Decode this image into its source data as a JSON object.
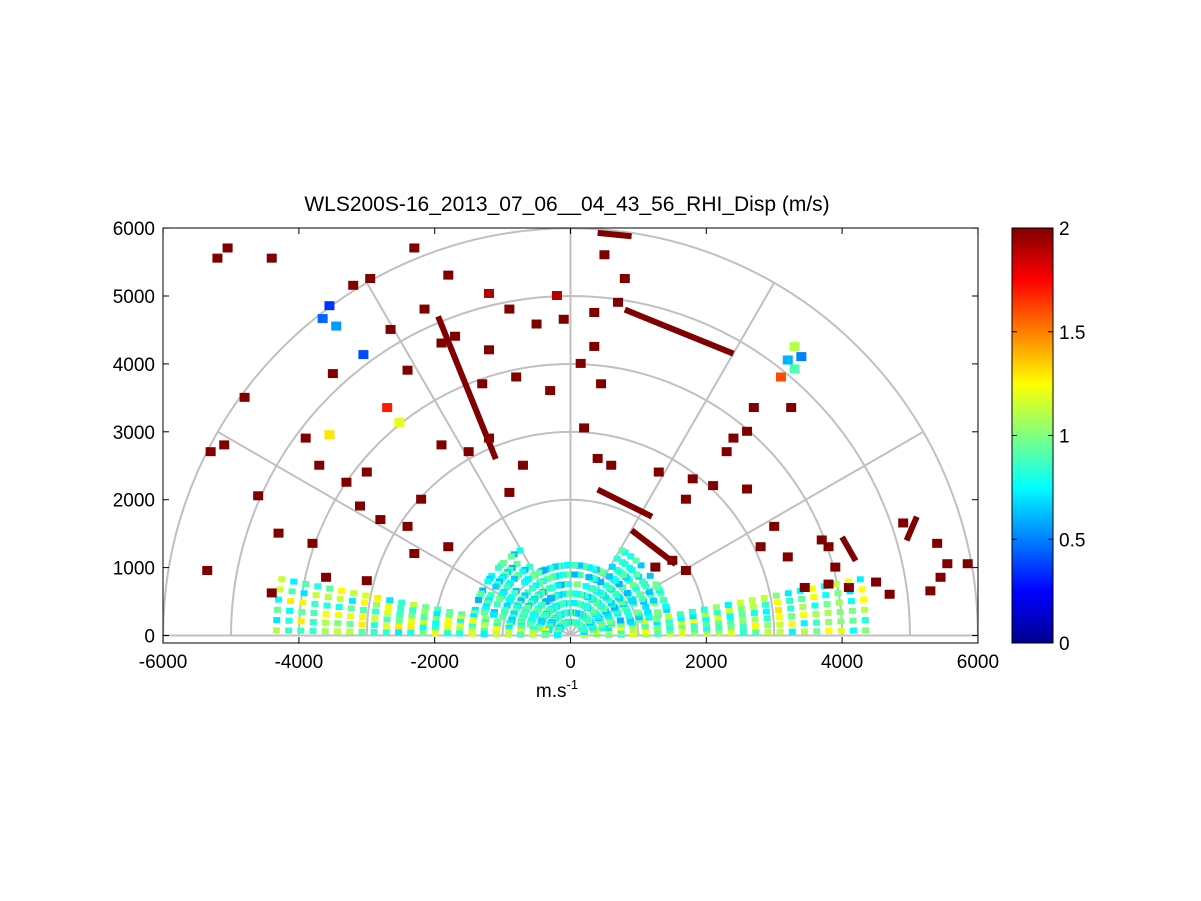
{
  "chart_data": {
    "type": "heatmap",
    "projection": "polar-rhi",
    "title": "WLS200S-16_2013_07_06__04_43_56_RHI_Disp (m/s)",
    "xlabel_base": "m.s",
    "xlabel_superscript": "-1",
    "ylabel": "",
    "xlim": [
      -6000,
      6000
    ],
    "ylim": [
      -100,
      6000
    ],
    "xticks": [
      -6000,
      -4000,
      -2000,
      0,
      2000,
      4000,
      6000
    ],
    "xtick_labels": [
      "-6000",
      "-4000",
      "-2000",
      "0",
      "2000",
      "4000",
      "6000"
    ],
    "yticks": [
      0,
      1000,
      2000,
      3000,
      4000,
      5000,
      6000
    ],
    "ytick_labels": [
      "0",
      "1000",
      "2000",
      "3000",
      "4000",
      "5000",
      "6000"
    ],
    "polar_grid_radii": [
      1000,
      2000,
      3000,
      4000,
      5000,
      6000
    ],
    "polar_grid_angles_deg": [
      0,
      30,
      60,
      90,
      120,
      150,
      180
    ],
    "grid": true,
    "colormap": "jet",
    "clim": [
      0,
      2
    ],
    "colorbar_ticks": [
      0,
      0.5,
      1,
      1.5,
      2
    ],
    "colorbar_tick_labels": [
      "0",
      "0.5",
      "1",
      "1.5",
      "2"
    ],
    "colorbar_position": "right",
    "cells": [
      {
        "x": -3650,
        "y": 4660,
        "v": 0.45
      },
      {
        "x": -3450,
        "y": 4550,
        "v": 0.55
      },
      {
        "x": -3550,
        "y": 4850,
        "v": 0.35
      },
      {
        "x": -3050,
        "y": 4130,
        "v": 0.4
      },
      {
        "x": -2700,
        "y": 3350,
        "v": 1.7
      },
      {
        "x": -2520,
        "y": 3130,
        "v": 1.2
      },
      {
        "x": -3550,
        "y": 2950,
        "v": 1.3
      },
      {
        "x": -1200,
        "y": 5030,
        "v": 1.9
      },
      {
        "x": -200,
        "y": 5000,
        "v": 1.9
      },
      {
        "x": 3300,
        "y": 4250,
        "v": 1.1
      },
      {
        "x": 3400,
        "y": 4100,
        "v": 0.5
      },
      {
        "x": 3200,
        "y": 4050,
        "v": 0.6
      },
      {
        "x": 3300,
        "y": 3920,
        "v": 0.9
      },
      {
        "x": 3100,
        "y": 3800,
        "v": 1.6
      },
      {
        "x": -5200,
        "y": 5550,
        "v": 2
      },
      {
        "x": -5050,
        "y": 5700,
        "v": 2
      },
      {
        "x": -4400,
        "y": 5550,
        "v": 2
      },
      {
        "x": -2950,
        "y": 5250,
        "v": 2
      },
      {
        "x": -2300,
        "y": 5700,
        "v": 2
      },
      {
        "x": -1800,
        "y": 5300,
        "v": 2
      },
      {
        "x": -3200,
        "y": 5150,
        "v": 2
      },
      {
        "x": -2650,
        "y": 4500,
        "v": 2
      },
      {
        "x": -2150,
        "y": 4800,
        "v": 2
      },
      {
        "x": -1700,
        "y": 4400,
        "v": 2
      },
      {
        "x": -1200,
        "y": 4200,
        "v": 2
      },
      {
        "x": -900,
        "y": 4800,
        "v": 2
      },
      {
        "x": -500,
        "y": 4580,
        "v": 2
      },
      {
        "x": -100,
        "y": 4650,
        "v": 2
      },
      {
        "x": 350,
        "y": 4750,
        "v": 2
      },
      {
        "x": 700,
        "y": 4900,
        "v": 2
      },
      {
        "x": 800,
        "y": 5250,
        "v": 2
      },
      {
        "x": 500,
        "y": 5600,
        "v": 2
      },
      {
        "x": 350,
        "y": 4250,
        "v": 2
      },
      {
        "x": 150,
        "y": 4000,
        "v": 2
      },
      {
        "x": 450,
        "y": 3700,
        "v": 2
      },
      {
        "x": -300,
        "y": 3600,
        "v": 2
      },
      {
        "x": -800,
        "y": 3800,
        "v": 2
      },
      {
        "x": -1300,
        "y": 3700,
        "v": 2
      },
      {
        "x": -1900,
        "y": 4300,
        "v": 2
      },
      {
        "x": -2400,
        "y": 3900,
        "v": 2
      },
      {
        "x": -3500,
        "y": 3850,
        "v": 2
      },
      {
        "x": -4800,
        "y": 3500,
        "v": 2
      },
      {
        "x": -5300,
        "y": 2700,
        "v": 2
      },
      {
        "x": -5100,
        "y": 2800,
        "v": 2
      },
      {
        "x": -4600,
        "y": 2050,
        "v": 2
      },
      {
        "x": -3900,
        "y": 2900,
        "v": 2
      },
      {
        "x": -3700,
        "y": 2500,
        "v": 2
      },
      {
        "x": -3300,
        "y": 2250,
        "v": 2
      },
      {
        "x": -3100,
        "y": 1900,
        "v": 2
      },
      {
        "x": -2800,
        "y": 1700,
        "v": 2
      },
      {
        "x": -3000,
        "y": 2400,
        "v": 2
      },
      {
        "x": -2400,
        "y": 1600,
        "v": 2
      },
      {
        "x": -2200,
        "y": 2000,
        "v": 2
      },
      {
        "x": -1900,
        "y": 2800,
        "v": 2
      },
      {
        "x": -1500,
        "y": 2700,
        "v": 2
      },
      {
        "x": -1200,
        "y": 2900,
        "v": 2
      },
      {
        "x": -700,
        "y": 2500,
        "v": 2
      },
      {
        "x": -900,
        "y": 2100,
        "v": 2
      },
      {
        "x": -4300,
        "y": 1500,
        "v": 2
      },
      {
        "x": -3800,
        "y": 1350,
        "v": 2
      },
      {
        "x": -2300,
        "y": 1200,
        "v": 2
      },
      {
        "x": -1800,
        "y": 1300,
        "v": 2
      },
      {
        "x": -5350,
        "y": 950,
        "v": 2
      },
      {
        "x": -4400,
        "y": 620,
        "v": 2
      },
      {
        "x": -3600,
        "y": 850,
        "v": 2
      },
      {
        "x": -3000,
        "y": 800,
        "v": 2
      },
      {
        "x": 200,
        "y": 3050,
        "v": 2
      },
      {
        "x": 400,
        "y": 2600,
        "v": 2
      },
      {
        "x": 600,
        "y": 2500,
        "v": 2
      },
      {
        "x": 1300,
        "y": 2400,
        "v": 2
      },
      {
        "x": 1800,
        "y": 2300,
        "v": 2
      },
      {
        "x": 2100,
        "y": 2200,
        "v": 2
      },
      {
        "x": 1700,
        "y": 2000,
        "v": 2
      },
      {
        "x": 2400,
        "y": 2900,
        "v": 2
      },
      {
        "x": 2600,
        "y": 3000,
        "v": 2
      },
      {
        "x": 2700,
        "y": 3350,
        "v": 2
      },
      {
        "x": 3250,
        "y": 3350,
        "v": 2
      },
      {
        "x": 2300,
        "y": 2700,
        "v": 2
      },
      {
        "x": 2600,
        "y": 2150,
        "v": 2
      },
      {
        "x": 3000,
        "y": 1600,
        "v": 2
      },
      {
        "x": 3200,
        "y": 1150,
        "v": 2
      },
      {
        "x": 3800,
        "y": 1300,
        "v": 2
      },
      {
        "x": 3900,
        "y": 1000,
        "v": 2
      },
      {
        "x": 3450,
        "y": 700,
        "v": 2
      },
      {
        "x": 3800,
        "y": 750,
        "v": 2
      },
      {
        "x": 4100,
        "y": 700,
        "v": 2
      },
      {
        "x": 4500,
        "y": 780,
        "v": 2
      },
      {
        "x": 4700,
        "y": 600,
        "v": 2
      },
      {
        "x": 4900,
        "y": 1650,
        "v": 2
      },
      {
        "x": 5400,
        "y": 1350,
        "v": 2
      },
      {
        "x": 5550,
        "y": 1050,
        "v": 2
      },
      {
        "x": 5450,
        "y": 850,
        "v": 2
      },
      {
        "x": 5300,
        "y": 650,
        "v": 2
      },
      {
        "x": 5850,
        "y": 1050,
        "v": 2
      },
      {
        "x": 3700,
        "y": 1400,
        "v": 2
      },
      {
        "x": 2800,
        "y": 1300,
        "v": 2
      },
      {
        "x": 1500,
        "y": 1100,
        "v": 2
      },
      {
        "x": 1250,
        "y": 1000,
        "v": 2
      },
      {
        "x": 1700,
        "y": 950,
        "v": 2
      }
    ],
    "streaks": [
      {
        "x0": 800,
        "y0": 4800,
        "x1": 2400,
        "y1": 4150,
        "v": 2
      },
      {
        "x0": 400,
        "y0": 5930,
        "x1": 900,
        "y1": 5880,
        "v": 2
      },
      {
        "x0": -1950,
        "y0": 4700,
        "x1": -1100,
        "y1": 2600,
        "v": 2
      },
      {
        "x0": 400,
        "y0": 2150,
        "x1": 1200,
        "y1": 1750,
        "v": 2
      },
      {
        "x0": 900,
        "y0": 1550,
        "x1": 1550,
        "y1": 1050,
        "v": 2
      },
      {
        "x0": 5100,
        "y0": 1750,
        "x1": 4950,
        "y1": 1400,
        "v": 2
      },
      {
        "x0": 4000,
        "y0": 1450,
        "x1": 4200,
        "y1": 1100,
        "v": 2
      }
    ]
  }
}
